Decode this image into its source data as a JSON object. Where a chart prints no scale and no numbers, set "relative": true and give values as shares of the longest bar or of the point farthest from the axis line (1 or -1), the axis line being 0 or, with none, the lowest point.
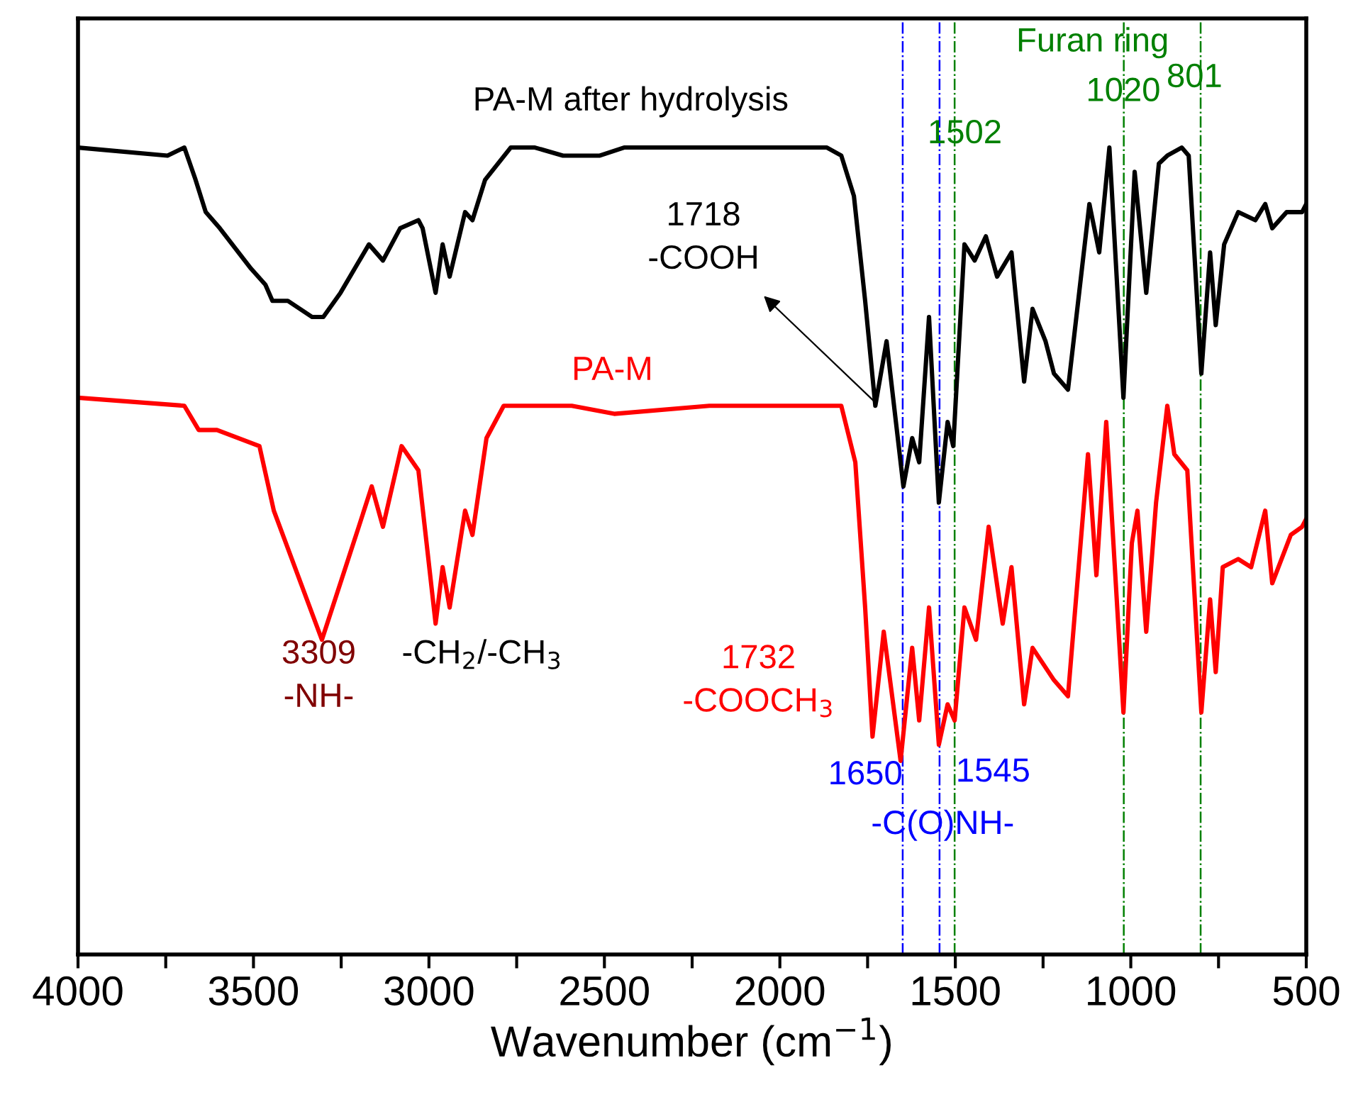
{
  "chart_data": {
    "type": "line",
    "relative": true,
    "xlabel": "Wavenumber (cm$^{−1}$)",
    "xlim": [
      4000,
      500
    ],
    "xticks": [
      4000,
      {
        "value": 3750,
        "label": null
      },
      3500,
      {
        "value": 3250,
        "label": null
      },
      3000,
      {
        "value": 2750,
        "label": null
      },
      2500,
      {
        "value": 2250,
        "label": null
      },
      2000,
      {
        "value": 1750,
        "label": null
      },
      1500,
      {
        "value": 1250,
        "label": null
      },
      1000,
      {
        "value": 750,
        "label": null
      },
      500
    ],
    "grid": false,
    "legend": false,
    "line_style": "solid",
    "marker": "none",
    "series": [
      {
        "color": "#000000",
        "x": [
          4000,
          3745,
          3697,
          3665,
          3636,
          3596,
          3507,
          3466,
          3446,
          3402,
          3333,
          3301,
          3252,
          3171,
          3131,
          3082,
          3030,
          3018,
          2981,
          2961,
          2941,
          2897,
          2876,
          2840,
          2767,
          2698,
          2618,
          2513,
          2444,
          1866,
          1825,
          1789,
          1757,
          1728,
          1696,
          1648,
          1623,
          1603,
          1575,
          1547,
          1522,
          1506,
          1474,
          1445,
          1413,
          1381,
          1340,
          1304,
          1280,
          1243,
          1219,
          1179,
          1118,
          1090,
          1061,
          1021,
          989,
          956,
          920,
          896,
          855,
          835,
          799,
          774,
          758,
          734,
          694,
          645,
          617,
          597,
          556,
          512,
          500
        ],
        "values": [
          1.0,
          0.99,
          1.0,
          0.96,
          0.92,
          0.9,
          0.85,
          0.83,
          0.81,
          0.81,
          0.79,
          0.79,
          0.82,
          0.88,
          0.86,
          0.9,
          0.91,
          0.9,
          0.82,
          0.88,
          0.84,
          0.92,
          0.91,
          0.96,
          1.0,
          1.0,
          0.99,
          0.99,
          1.0,
          1.0,
          0.99,
          0.94,
          0.81,
          0.68,
          0.76,
          0.58,
          0.64,
          0.61,
          0.79,
          0.56,
          0.66,
          0.63,
          0.88,
          0.86,
          0.89,
          0.84,
          0.87,
          0.71,
          0.8,
          0.76,
          0.72,
          0.7,
          0.93,
          0.87,
          1.0,
          0.69,
          0.97,
          0.82,
          0.98,
          0.99,
          1.0,
          0.99,
          0.72,
          0.87,
          0.78,
          0.88,
          0.92,
          0.91,
          0.93,
          0.9,
          0.92,
          0.92,
          0.93
        ]
      },
      {
        "color": "#ff0000",
        "x": [
          4000,
          3697,
          3656,
          3604,
          3483,
          3442,
          3305,
          3200,
          3163,
          3131,
          3078,
          3030,
          2981,
          2961,
          2941,
          2897,
          2876,
          2836,
          2787,
          2593,
          2472,
          2201,
          1959,
          1825,
          1785,
          1757,
          1736,
          1704,
          1656,
          1623,
          1603,
          1575,
          1547,
          1522,
          1502,
          1474,
          1441,
          1405,
          1365,
          1340,
          1304,
          1280,
          1219,
          1179,
          1122,
          1098,
          1070,
          1021,
          997,
          981,
          956,
          928,
          896,
          876,
          839,
          799,
          774,
          758,
          738,
          694,
          657,
          617,
          597,
          544,
          512,
          500
        ],
        "values": [
          0.69,
          0.68,
          0.65,
          0.65,
          0.63,
          0.55,
          0.39,
          0.53,
          0.58,
          0.53,
          0.63,
          0.6,
          0.41,
          0.48,
          0.43,
          0.55,
          0.52,
          0.64,
          0.68,
          0.68,
          0.67,
          0.68,
          0.68,
          0.68,
          0.61,
          0.43,
          0.27,
          0.4,
          0.24,
          0.38,
          0.29,
          0.43,
          0.26,
          0.31,
          0.29,
          0.43,
          0.39,
          0.53,
          0.41,
          0.48,
          0.31,
          0.38,
          0.34,
          0.32,
          0.62,
          0.47,
          0.66,
          0.3,
          0.51,
          0.55,
          0.4,
          0.56,
          0.68,
          0.62,
          0.6,
          0.3,
          0.44,
          0.35,
          0.48,
          0.49,
          0.48,
          0.55,
          0.46,
          0.52,
          0.53,
          0.54
        ]
      }
    ],
    "ref_lines": [
      {
        "axis": "x",
        "value": 1650,
        "color": "#0000ff",
        "line_style": "dashed"
      },
      {
        "axis": "x",
        "value": 1545,
        "color": "#0000ff",
        "line_style": "dashed"
      },
      {
        "axis": "x",
        "value": 1502,
        "color": "#008000",
        "line_style": "dashed"
      },
      {
        "axis": "x",
        "value": 1020,
        "color": "#008000",
        "line_style": "dashed"
      },
      {
        "axis": "x",
        "value": 801,
        "color": "#008000",
        "line_style": "dashed"
      }
    ],
    "annotations": [
      "PA-M after hydrolysis",
      "PA-M",
      {
        "text": "1718\n-COOH",
        "x": 1718,
        "y": 0.68
      },
      "3309\n-NH-",
      "-CH$_{2}$/-CH$_{3}$",
      "1732\n-COOCH$_{3}$",
      "1650",
      "1545",
      "-C(O)NH-",
      "Furan ring",
      "1502",
      "1020",
      "801"
    ]
  }
}
